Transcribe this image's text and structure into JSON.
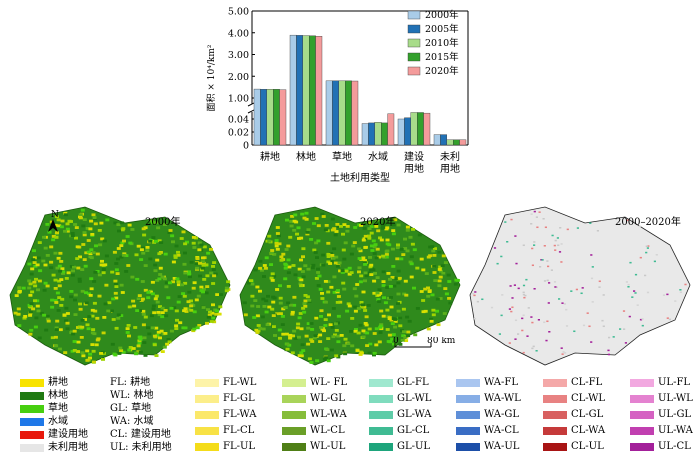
{
  "chart_data": {
    "type": "bar",
    "ylabel": "面积 × 10⁴/km²",
    "xlabel": "土地利用类型",
    "categories": [
      "耕地",
      "林地",
      "草地",
      "水域",
      "建设用地",
      "未利用地"
    ],
    "category_lines": [
      [
        "耕地"
      ],
      [
        "林地"
      ],
      [
        "草地"
      ],
      [
        "水域"
      ],
      [
        "建设",
        "用地"
      ],
      [
        "未利",
        "用地"
      ]
    ],
    "yticks_upper": [
      "1.00",
      "2.00",
      "3.00",
      "4.00",
      "5.00"
    ],
    "yticks_lower": [
      "0",
      "0.02",
      "0.04"
    ],
    "axis_break": true,
    "series": [
      {
        "name": "2000年",
        "color": "#a9cce8",
        "values": [
          1.41,
          3.89,
          1.79,
          0.033,
          0.04,
          0.016
        ]
      },
      {
        "name": "2005年",
        "color": "#2171b5",
        "values": [
          1.4,
          3.88,
          1.79,
          0.034,
          0.042,
          0.016
        ]
      },
      {
        "name": "2010年",
        "color": "#a8dc8a",
        "values": [
          1.4,
          3.87,
          1.79,
          0.035,
          0.05,
          0.008
        ]
      },
      {
        "name": "2015年",
        "color": "#33a02c",
        "values": [
          1.4,
          3.86,
          1.79,
          0.034,
          0.05,
          0.008
        ]
      },
      {
        "name": "2020年",
        "color": "#f49b9b",
        "values": [
          1.38,
          3.84,
          1.78,
          0.048,
          0.049,
          0.008
        ]
      }
    ]
  },
  "maps": {
    "map1_title": "2000年",
    "map2_title": "2020年",
    "map3_title": "2000–2020年",
    "north_label": "N",
    "scale_zero": "0",
    "scale_end": "80 km"
  },
  "legend": {
    "classes": [
      {
        "label": "耕地",
        "color": "#f8e300"
      },
      {
        "label": "林地",
        "color": "#1f7a12"
      },
      {
        "label": "草地",
        "color": "#47cf10"
      },
      {
        "label": "水域",
        "color": "#1f78e8"
      },
      {
        "label": "建设用地",
        "color": "#e8180c"
      },
      {
        "label": "未利用地",
        "color": "#e6e6e6"
      }
    ],
    "abbreviations": [
      "FL: 耕地",
      "WL: 林地",
      "GL: 草地",
      "WA: 水域",
      "CL: 建设用地",
      "UL: 未利用地"
    ],
    "transitions": [
      [
        {
          "label": "FL-WL",
          "color": "#fdf3a8"
        },
        {
          "label": "FL-GL",
          "color": "#fcee8a"
        },
        {
          "label": "FL-WA",
          "color": "#fbe86a"
        },
        {
          "label": "FL-CL",
          "color": "#f8e245"
        },
        {
          "label": "FL-UL",
          "color": "#f4dc1a"
        }
      ],
      [
        {
          "label": "WL- FL",
          "color": "#d4ef90"
        },
        {
          "label": "WL-GL",
          "color": "#a9d45a"
        },
        {
          "label": "WL-WA",
          "color": "#86bd3a"
        },
        {
          "label": "WL-CL",
          "color": "#6a9f28"
        },
        {
          "label": "WL-UL",
          "color": "#4f7f16"
        }
      ],
      [
        {
          "label": "GL-FL",
          "color": "#9fe8cf"
        },
        {
          "label": "GL-WL",
          "color": "#80dcbe"
        },
        {
          "label": "GL-WA",
          "color": "#5fcca8"
        },
        {
          "label": "GL-CL",
          "color": "#3fbb93"
        },
        {
          "label": "GL-UL",
          "color": "#1ea57c"
        }
      ],
      [
        {
          "label": "WA-FL",
          "color": "#aac6f0"
        },
        {
          "label": "WA-WL",
          "color": "#87aee6"
        },
        {
          "label": "WA-GL",
          "color": "#5f8fd8"
        },
        {
          "label": "WA-CL",
          "color": "#3a6dc4"
        },
        {
          "label": "WA-UL",
          "color": "#1d4fa8"
        }
      ],
      [
        {
          "label": "CL-FL",
          "color": "#f4a8a8"
        },
        {
          "label": "CL-WL",
          "color": "#e88282"
        },
        {
          "label": "CL-GL",
          "color": "#d86060"
        },
        {
          "label": "CL-WA",
          "color": "#c53a3a"
        },
        {
          "label": "CL-UL",
          "color": "#a81414"
        }
      ],
      [
        {
          "label": "UL-FL",
          "color": "#f2a8e0"
        },
        {
          "label": "UL-WL",
          "color": "#e482d0"
        },
        {
          "label": "UL-GL",
          "color": "#d562c2"
        },
        {
          "label": "UL-WA",
          "color": "#c13fb0"
        },
        {
          "label": "UL-CL",
          "color": "#a3209a"
        }
      ]
    ]
  }
}
